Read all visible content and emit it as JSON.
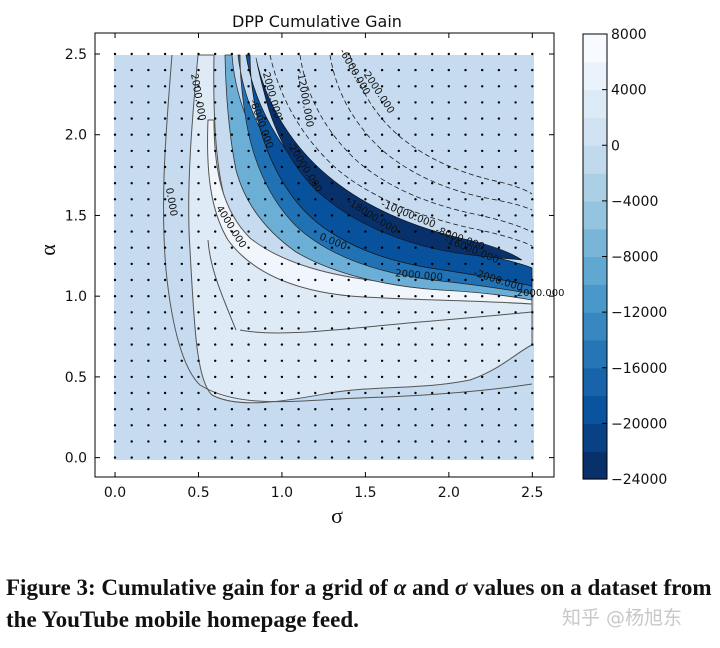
{
  "chart_data": {
    "type": "heatmap",
    "title": "DPP Cumulative Gain",
    "xlabel": "σ",
    "ylabel": "α",
    "xlim": [
      -0.12,
      2.63
    ],
    "ylim": [
      -0.12,
      2.63
    ],
    "xticks": [
      "0.0",
      "0.5",
      "1.0",
      "1.5",
      "2.0",
      "2.5"
    ],
    "yticks": [
      "0.0",
      "0.5",
      "1.0",
      "1.5",
      "2.0",
      "2.5"
    ],
    "colorbar": {
      "min": -24000,
      "max": 8000,
      "ticks": [
        "8000",
        "4000",
        "0",
        "−4000",
        "−8000",
        "−12000",
        "−16000",
        "−20000",
        "−24000"
      ],
      "colors": [
        "#08306b",
        "#08519c",
        "#2171b5",
        "#4292c6",
        "#6baed6",
        "#9ecae1",
        "#c6dbef",
        "#deebf7",
        "#f7fbff"
      ]
    },
    "grid_points": {
      "x_start": 0.0,
      "x_end": 2.5,
      "y_start": 0.0,
      "y_end": 2.5,
      "step": 0.1
    },
    "contour_labels": [
      {
        "text": "2000.000",
        "x": 0.48,
        "y": 2.23,
        "angle": 80
      },
      {
        "text": "0.000",
        "x": 0.32,
        "y": 1.58,
        "angle": 80
      },
      {
        "text": "4000.000",
        "x": 0.68,
        "y": 1.42,
        "angle": 58
      },
      {
        "text": "-2000.000",
        "x": 0.92,
        "y": 2.25,
        "angle": 75
      },
      {
        "text": "-8000.000",
        "x": 0.86,
        "y": 2.06,
        "angle": 70
      },
      {
        "text": "-12000.000",
        "x": 1.12,
        "y": 2.22,
        "angle": 80
      },
      {
        "text": "-6000.000",
        "x": 1.42,
        "y": 2.38,
        "angle": 60
      },
      {
        "text": "-2000.000",
        "x": 1.56,
        "y": 2.26,
        "angle": 57
      },
      {
        "text": "-20000.000",
        "x": 1.12,
        "y": 1.79,
        "angle": 58
      },
      {
        "text": "-18000.000",
        "x": 1.53,
        "y": 1.48,
        "angle": 32
      },
      {
        "text": "-10000.000",
        "x": 1.75,
        "y": 1.49,
        "angle": 22
      },
      {
        "text": "-8000.000",
        "x": 2.06,
        "y": 1.34,
        "angle": 20
      },
      {
        "text": "-16000.000",
        "x": 2.13,
        "y": 1.27,
        "angle": 22
      },
      {
        "text": "0.000",
        "x": 1.3,
        "y": 1.32,
        "angle": 22
      },
      {
        "text": "2000.000",
        "x": 1.82,
        "y": 1.11,
        "angle": 5
      },
      {
        "text": "-2000.000",
        "x": 2.29,
        "y": 1.08,
        "angle": 18
      },
      {
        "text": "2000.000",
        "x": 2.55,
        "y": 1.0,
        "angle": 0
      }
    ]
  },
  "caption": {
    "prefix": "Figure 3: Cumulative gain for a grid of ",
    "alpha": "α",
    "middle": " and ",
    "sigma": "σ",
    "suffix": " values on a dataset from the YouTube mobile homepage feed."
  },
  "watermark": {
    "text": "知乎 @杨旭东"
  }
}
